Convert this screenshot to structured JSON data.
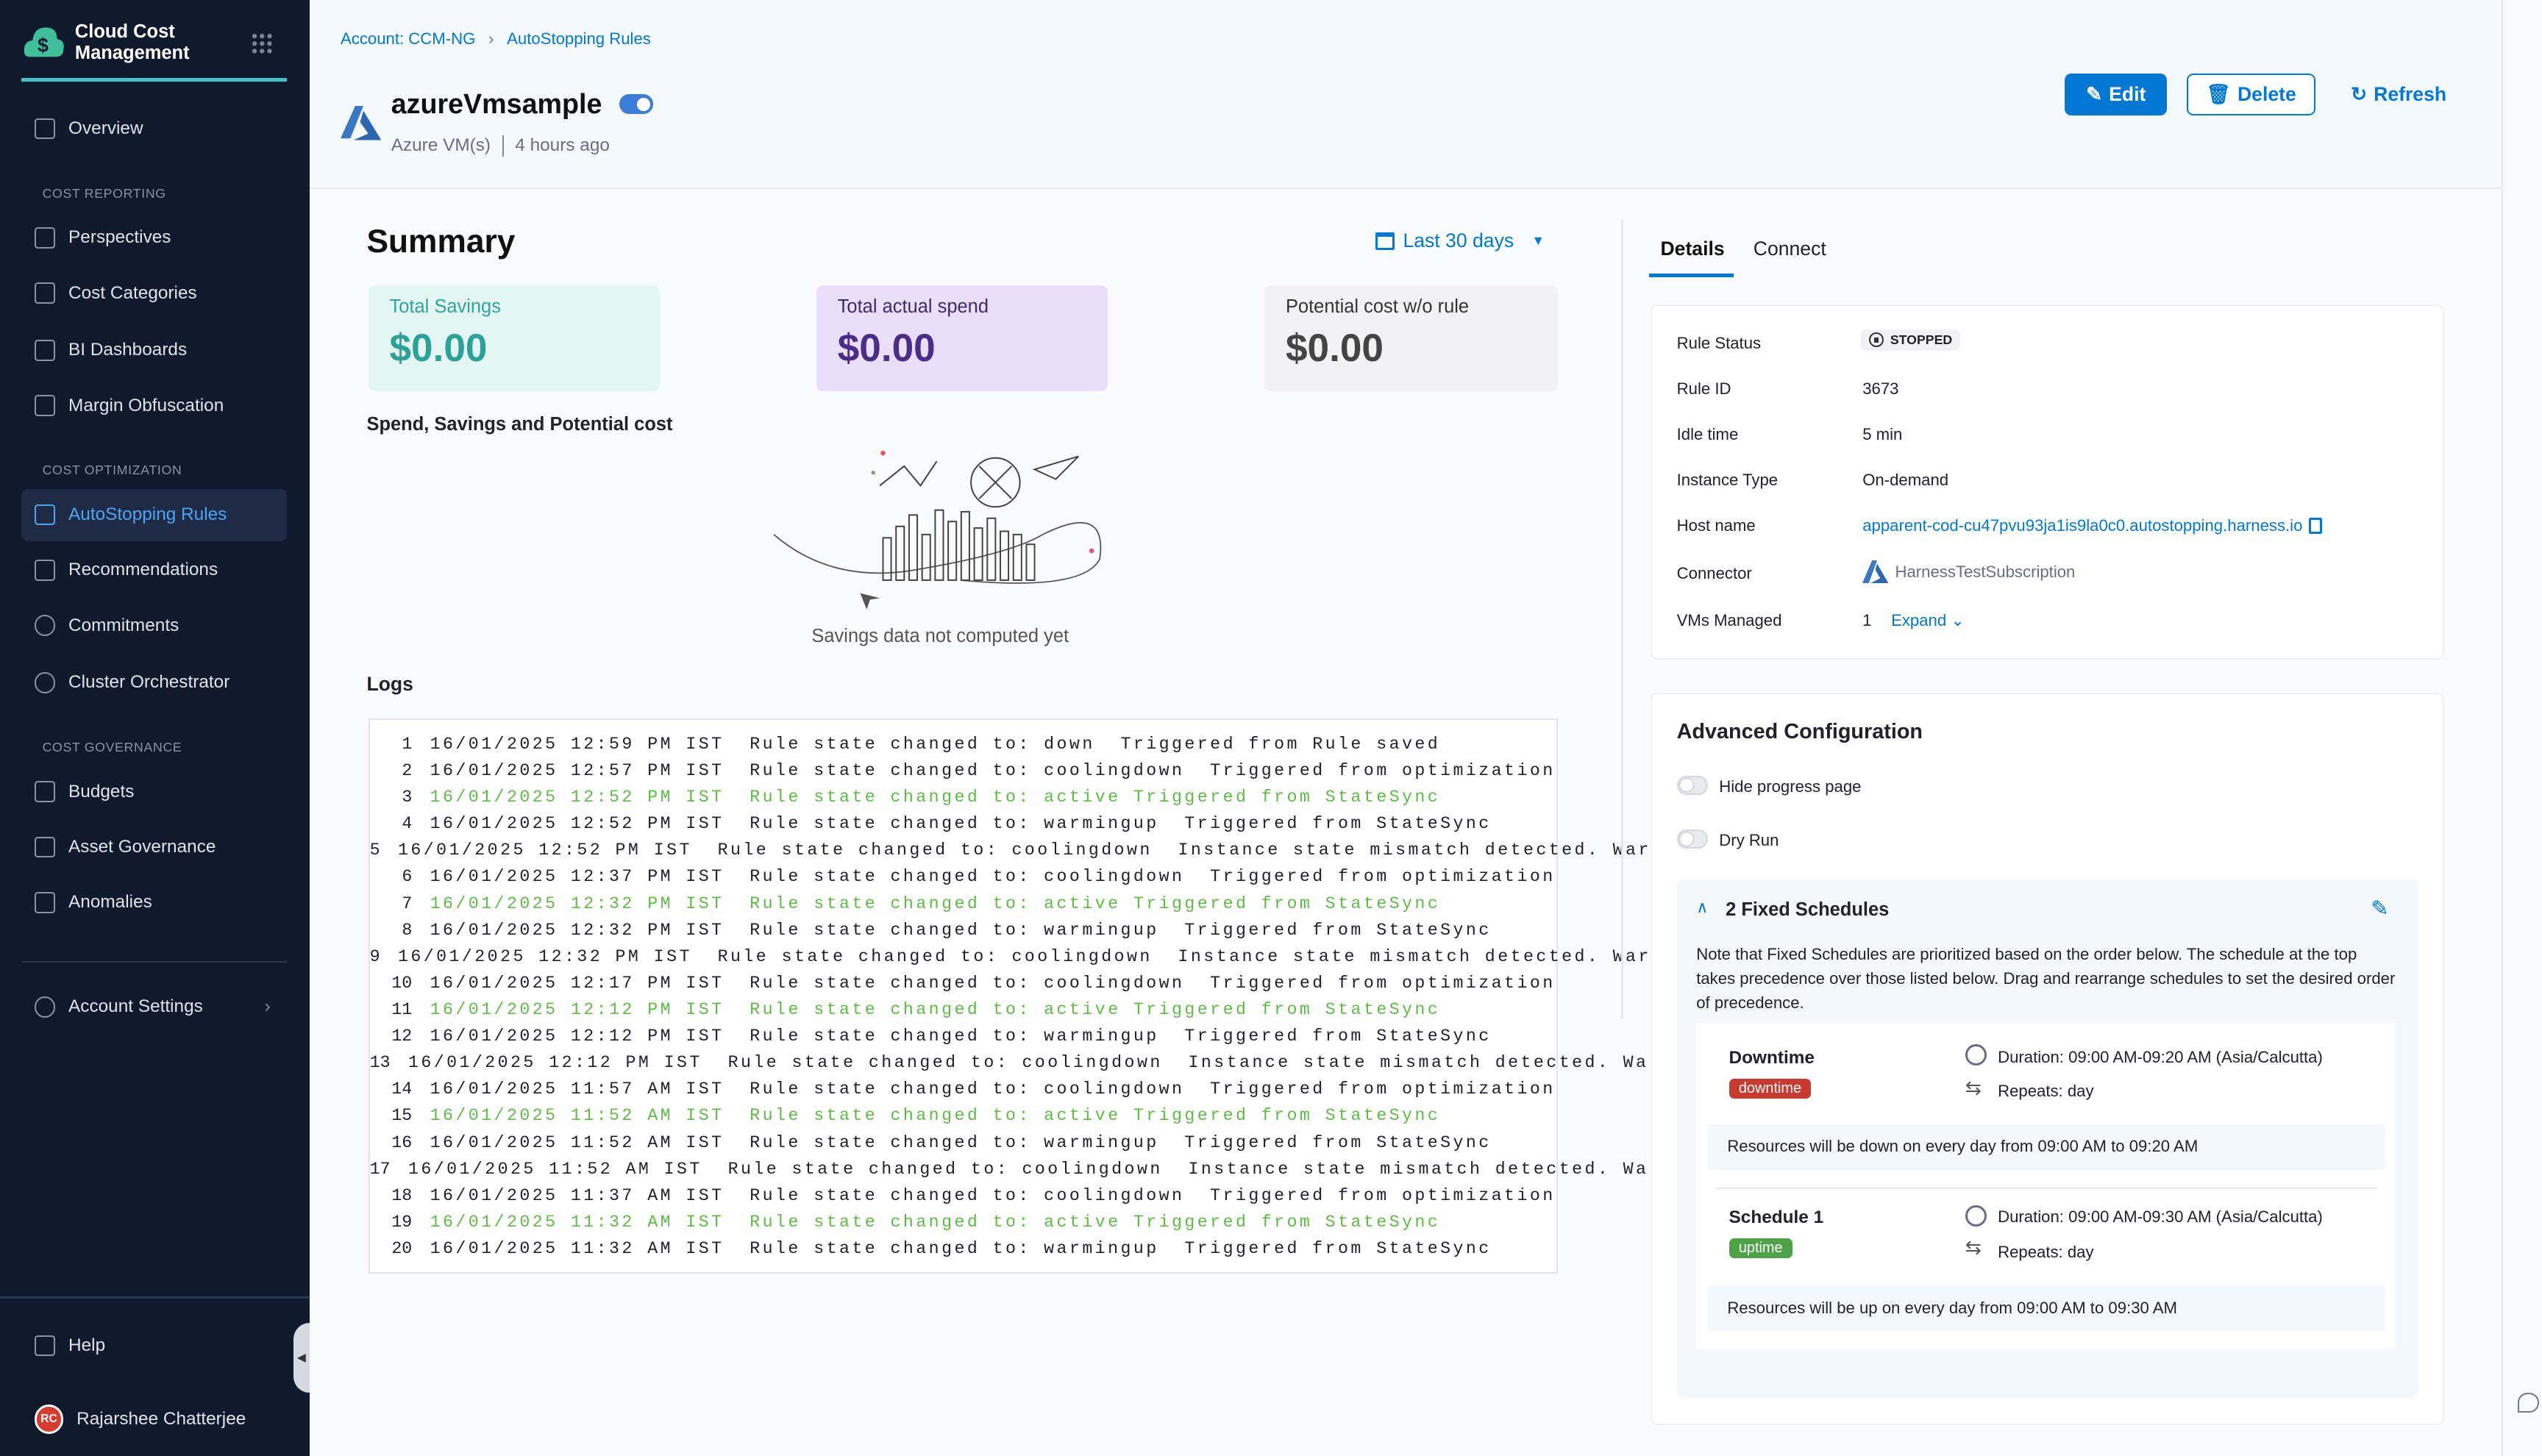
{
  "sidebar": {
    "app_title": "Cloud Cost Management",
    "items": {
      "overview": "Overview",
      "section_reporting": "COST REPORTING",
      "perspectives": "Perspectives",
      "cost_categories": "Cost Categories",
      "bi_dashboards": "BI Dashboards",
      "margin_obfuscation": "Margin Obfuscation",
      "section_optimization": "COST OPTIMIZATION",
      "autostopping": "AutoStopping Rules",
      "recommendations": "Recommendations",
      "commitments": "Commitments",
      "cluster_orchestrator": "Cluster Orchestrator",
      "section_governance": "COST GOVERNANCE",
      "budgets": "Budgets",
      "asset_governance": "Asset Governance",
      "anomalies": "Anomalies",
      "account_settings": "Account Settings",
      "help": "Help"
    },
    "user": {
      "initials": "RC",
      "name": "Rajarshee Chatterjee"
    },
    "active_color": "#4aa6f5"
  },
  "header": {
    "breadcrumb": [
      "Account: CCM-NG",
      "AutoStopping Rules"
    ],
    "title": "azureVmsample",
    "enabled": true,
    "subtitle_type": "Azure VM(s)",
    "subtitle_time": "4 hours ago",
    "edit": "Edit",
    "delete": "Delete",
    "refresh": "Refresh"
  },
  "summary": {
    "title": "Summary",
    "date_range": "Last 30 days",
    "cards": [
      {
        "label": "Total Savings",
        "value": "$0.00"
      },
      {
        "label": "Total actual spend",
        "value": "$0.00"
      },
      {
        "label": "Potential cost w/o rule",
        "value": "$0.00"
      }
    ],
    "chart_title": "Spend, Savings and Potential cost",
    "empty_text": "Savings data not computed yet"
  },
  "logs": {
    "title": "Logs",
    "rows": [
      {
        "n": "1",
        "text": "16/01/2025 12:59 PM IST  Rule state changed to: down  Triggered from Rule saved",
        "active": false
      },
      {
        "n": "2",
        "text": "16/01/2025 12:57 PM IST  Rule state changed to: coolingdown  Triggered from optimization",
        "active": false
      },
      {
        "n": "3",
        "text": "16/01/2025 12:52 PM IST  Rule state changed to: active Triggered from StateSync",
        "active": true
      },
      {
        "n": "4",
        "text": "16/01/2025 12:52 PM IST  Rule state changed to: warmingup  Triggered from StateSync",
        "active": false
      },
      {
        "n": "5",
        "text": "16/01/2025 12:52 PM IST  Rule state changed to: coolingdown  Instance state mismatch detected. Warming up",
        "active": false
      },
      {
        "n": "6",
        "text": "16/01/2025 12:37 PM IST  Rule state changed to: coolingdown  Triggered from optimization",
        "active": false
      },
      {
        "n": "7",
        "text": "16/01/2025 12:32 PM IST  Rule state changed to: active Triggered from StateSync",
        "active": true
      },
      {
        "n": "8",
        "text": "16/01/2025 12:32 PM IST  Rule state changed to: warmingup  Triggered from StateSync",
        "active": false
      },
      {
        "n": "9",
        "text": "16/01/2025 12:32 PM IST  Rule state changed to: coolingdown  Instance state mismatch detected. Warming up",
        "active": false
      },
      {
        "n": "10",
        "text": "16/01/2025 12:17 PM IST  Rule state changed to: coolingdown  Triggered from optimization",
        "active": false
      },
      {
        "n": "11",
        "text": "16/01/2025 12:12 PM IST  Rule state changed to: active Triggered from StateSync",
        "active": true
      },
      {
        "n": "12",
        "text": "16/01/2025 12:12 PM IST  Rule state changed to: warmingup  Triggered from StateSync",
        "active": false
      },
      {
        "n": "13",
        "text": "16/01/2025 12:12 PM IST  Rule state changed to: coolingdown  Instance state mismatch detected. Warming up",
        "active": false
      },
      {
        "n": "14",
        "text": "16/01/2025 11:57 AM IST  Rule state changed to: coolingdown  Triggered from optimization",
        "active": false
      },
      {
        "n": "15",
        "text": "16/01/2025 11:52 AM IST  Rule state changed to: active Triggered from StateSync",
        "active": true
      },
      {
        "n": "16",
        "text": "16/01/2025 11:52 AM IST  Rule state changed to: warmingup  Triggered from StateSync",
        "active": false
      },
      {
        "n": "17",
        "text": "16/01/2025 11:52 AM IST  Rule state changed to: coolingdown  Instance state mismatch detected. Warming up",
        "active": false
      },
      {
        "n": "18",
        "text": "16/01/2025 11:37 AM IST  Rule state changed to: coolingdown  Triggered from optimization",
        "active": false
      },
      {
        "n": "19",
        "text": "16/01/2025 11:32 AM IST  Rule state changed to: active Triggered from StateSync",
        "active": true
      },
      {
        "n": "20",
        "text": "16/01/2025 11:32 AM IST  Rule state changed to: warmingup  Triggered from StateSync",
        "active": false
      }
    ]
  },
  "tabs": {
    "details": "Details",
    "connect": "Connect",
    "active": "details"
  },
  "details": {
    "rule_status_label": "Rule Status",
    "rule_status": "STOPPED",
    "rule_id_label": "Rule ID",
    "rule_id": "3673",
    "idle_label": "Idle time",
    "idle": "5 min",
    "instance_label": "Instance Type",
    "instance": "On-demand",
    "host_label": "Host name",
    "host": "apparent-cod-cu47pvu93ja1is9la0c0.autostopping.harness.io",
    "connector_label": "Connector",
    "connector": "HarnessTestSubscription",
    "vms_label": "VMs Managed",
    "vms": "1",
    "expand": "Expand"
  },
  "advanced": {
    "title": "Advanced Configuration",
    "hide_progress": "Hide progress page",
    "hide_progress_on": false,
    "dry_run": "Dry Run",
    "dry_run_on": false,
    "schedules_title": "2 Fixed Schedules",
    "note": "Note that Fixed Schedules are prioritized based on the order below. The schedule at the top takes precedence over those listed below. Drag and rearrange schedules to set the desired order of precedence.",
    "schedules": [
      {
        "name": "Downtime",
        "type": "downtime",
        "duration": "Duration: 09:00 AM-09:20 AM (Asia/Calcutta)",
        "repeats": "Repeats: day",
        "summary": "Resources will be down on every day from 09:00 AM to 09:20 AM"
      },
      {
        "name": "Schedule 1",
        "type": "uptime",
        "duration": "Duration: 09:00 AM-09:30 AM (Asia/Calcutta)",
        "repeats": "Repeats: day",
        "summary": "Resources will be up on every day from 09:00 AM to 09:30 AM"
      }
    ]
  },
  "colors": {
    "primary": "#0278d5",
    "sidebar": "#101a2d",
    "downtime": "#c93a2e",
    "uptime": "#4da447",
    "log_active": "#5fbb47"
  }
}
